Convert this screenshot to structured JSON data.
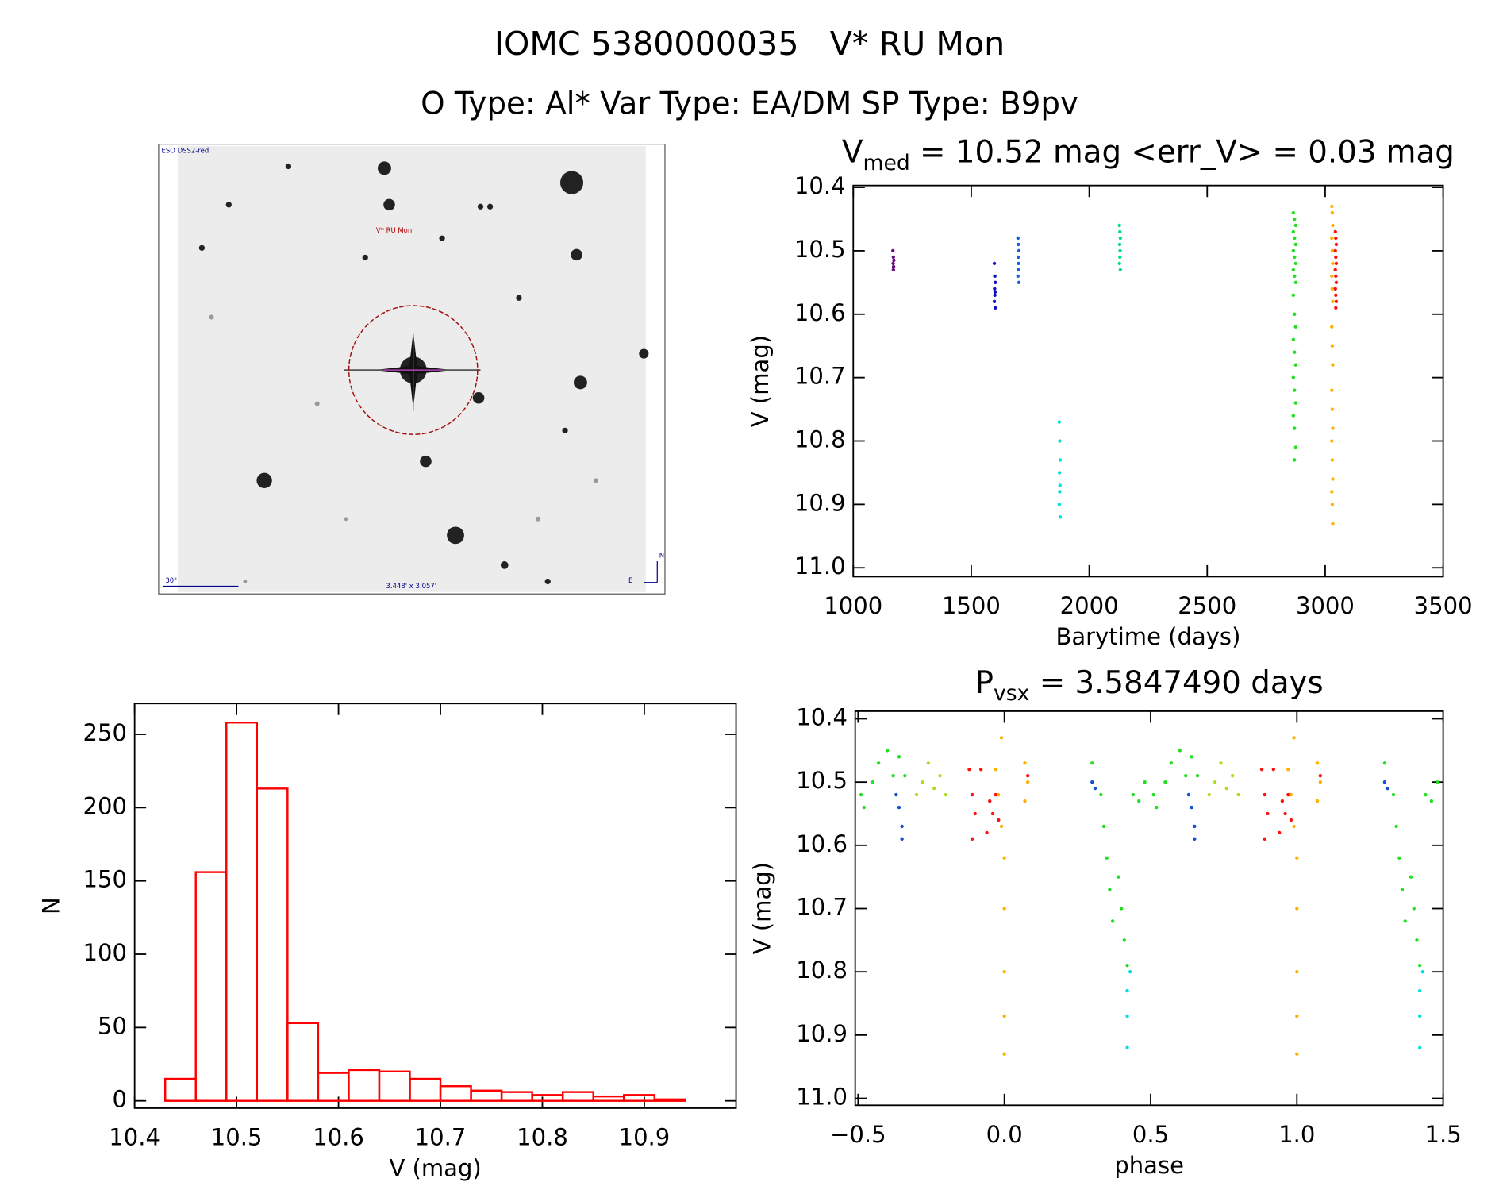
{
  "header": {
    "title": "IOMC 5380000035   V* RU Mon",
    "subtitle": "O Type: Al*  Var Type: EA/DM  SP Type: B9pv"
  },
  "image": {
    "survey": "ESO DSS2-red",
    "target": "V* RU Mon",
    "scale": "30\"",
    "size": "3.448' x 3.057'",
    "north": "N",
    "east": "E"
  },
  "chart_data": [
    {
      "type": "scatter",
      "title_parts": [
        "V",
        "med",
        " = 10.52 mag <err_V> = 0.03 mag"
      ],
      "x_label": "Barytime (days)",
      "y_label": "V (mag)",
      "xlim": [
        1000,
        3500
      ],
      "xticks": [
        1000,
        1500,
        2000,
        2500,
        3000,
        3500
      ],
      "ylim": [
        10.397,
        11.014
      ],
      "y_inverted": true,
      "yticks": [
        10.4,
        10.5,
        10.6,
        10.7,
        10.8,
        10.9,
        {
          "value": 11,
          "label": "11.0"
        }
      ],
      "series": [
        {
          "color": "#6a0d83",
          "x": [
            1168,
            1170,
            1172,
            1169,
            1171,
            1170
          ],
          "values": [
            10.5,
            10.51,
            10.515,
            10.52,
            10.525,
            10.53
          ]
        },
        {
          "color": "#1010c0",
          "x": [
            1598,
            1600,
            1602,
            1599,
            1601,
            1600,
            1598,
            1602
          ],
          "values": [
            10.52,
            10.54,
            10.55,
            10.56,
            10.565,
            10.57,
            10.58,
            10.59
          ]
        },
        {
          "color": "#1060e0",
          "x": [
            1698,
            1700,
            1702,
            1699,
            1701,
            1700,
            1698,
            1702
          ],
          "values": [
            10.48,
            10.49,
            10.5,
            10.51,
            10.52,
            10.53,
            10.54,
            10.55
          ]
        },
        {
          "color": "#00e0e0",
          "x": [
            1873,
            1875,
            1877,
            1874,
            1876,
            1875,
            1873,
            1877
          ],
          "values": [
            10.77,
            10.8,
            10.83,
            10.85,
            10.87,
            10.88,
            10.9,
            10.92
          ]
        },
        {
          "color": "#00e080",
          "x": [
            2128,
            2130,
            2132,
            2129,
            2131,
            2130,
            2128,
            2132
          ],
          "values": [
            10.46,
            10.47,
            10.48,
            10.49,
            10.5,
            10.51,
            10.52,
            10.53
          ]
        },
        {
          "color": "#20e020",
          "x": [
            2865,
            2870,
            2875,
            2865,
            2870,
            2875,
            2865,
            2870,
            2875,
            2865,
            2870,
            2875,
            2865,
            2870,
            2875,
            2865,
            2870,
            2875,
            2865,
            2870,
            2875,
            2865,
            2870,
            2875,
            2870
          ],
          "values": [
            10.44,
            10.45,
            10.46,
            10.47,
            10.48,
            10.49,
            10.5,
            10.51,
            10.52,
            10.53,
            10.54,
            10.55,
            10.57,
            10.6,
            10.62,
            10.64,
            10.66,
            10.68,
            10.7,
            10.72,
            10.74,
            10.76,
            10.78,
            10.81,
            10.83
          ]
        },
        {
          "color": "#ffb000",
          "x": [
            3028,
            3030,
            3032,
            3028,
            3030,
            3032,
            3028,
            3030,
            3032,
            3028,
            3030,
            3032,
            3028,
            3030,
            3032,
            3028,
            3030,
            3032,
            3028,
            3030,
            3032
          ],
          "values": [
            10.43,
            10.44,
            10.46,
            10.48,
            10.5,
            10.52,
            10.54,
            10.56,
            10.58,
            10.62,
            10.65,
            10.68,
            10.72,
            10.75,
            10.78,
            10.8,
            10.83,
            10.86,
            10.88,
            10.9,
            10.93
          ]
        },
        {
          "color": "#ff1010",
          "x": [
            3043,
            3045,
            3047,
            3043,
            3045,
            3047,
            3043,
            3045,
            3047,
            3043,
            3045,
            3047,
            3045
          ],
          "values": [
            10.47,
            10.48,
            10.49,
            10.5,
            10.51,
            10.52,
            10.53,
            10.54,
            10.55,
            10.56,
            10.57,
            10.58,
            10.59
          ]
        }
      ]
    },
    {
      "type": "histogram",
      "x_label": "V (mag)",
      "y_label": "N",
      "color": "#ff0000",
      "bins": [
        10.43,
        10.46,
        10.49,
        10.52,
        10.55,
        10.58,
        10.61,
        10.64,
        10.67,
        10.7,
        10.73,
        10.76,
        10.79,
        10.82,
        10.85,
        10.88,
        10.91,
        10.94
      ],
      "counts": [
        15,
        156,
        258,
        213,
        53,
        19,
        21,
        20,
        15,
        10,
        7,
        6,
        4,
        6,
        3,
        4,
        1
      ],
      "xlim": [
        10.4,
        10.99
      ],
      "xticks": [
        10.4,
        10.5,
        10.6,
        10.7,
        10.8,
        10.9
      ],
      "ylim": [
        -5,
        271
      ],
      "yticks": [
        0,
        50,
        100,
        150,
        200,
        250
      ]
    },
    {
      "type": "scatter",
      "title_parts": [
        "P",
        "vsx",
        " = 3.5847490 days"
      ],
      "x_label": "phase",
      "y_label": "V (mag)",
      "xlim": [
        -0.51,
        1.5
      ],
      "xticks": [
        {
          "value": -0.5,
          "label": "−0.5"
        },
        {
          "value": 0,
          "label": "0.0"
        },
        0.5,
        {
          "value": 1,
          "label": "1.0"
        },
        1.5
      ],
      "ylim": [
        10.388,
        11.011
      ],
      "y_inverted": true,
      "yticks": [
        10.4,
        10.5,
        10.6,
        10.7,
        10.8,
        10.9,
        {
          "value": 11,
          "label": "11.0"
        }
      ],
      "series": [
        {
          "color": "#20e020",
          "x": [
            -0.49,
            -0.48,
            -0.45,
            -0.43,
            -0.4,
            -0.38,
            -0.36,
            -0.34,
            0.3,
            0.33,
            0.34,
            0.35,
            0.36,
            0.37,
            0.39,
            0.4,
            0.41,
            0.42,
            0.44,
            0.46,
            0.48,
            0.51,
            0.52,
            0.55,
            0.57,
            0.6,
            0.62,
            0.64,
            0.66,
            1.3,
            1.33,
            1.34,
            1.35,
            1.36,
            1.37,
            1.39,
            1.4,
            1.41,
            1.42,
            1.44,
            1.46,
            1.48
          ],
          "values": [
            10.52,
            10.54,
            10.5,
            10.47,
            10.45,
            10.49,
            10.46,
            10.49,
            10.47,
            10.52,
            10.57,
            10.62,
            10.67,
            10.72,
            10.65,
            10.7,
            10.75,
            10.79,
            10.52,
            10.53,
            10.5,
            10.52,
            10.54,
            10.5,
            10.47,
            10.45,
            10.49,
            10.46,
            10.49,
            10.47,
            10.52,
            10.57,
            10.62,
            10.67,
            10.72,
            10.65,
            10.7,
            10.75,
            10.79,
            10.52,
            10.53,
            10.5
          ]
        },
        {
          "color": "#a8e020",
          "x": [
            -0.3,
            -0.28,
            -0.26,
            -0.24,
            -0.22,
            -0.2,
            0.7,
            0.72,
            0.74,
            0.76,
            0.78,
            0.8
          ],
          "values": [
            10.52,
            10.5,
            10.47,
            10.51,
            10.49,
            10.52,
            10.52,
            10.5,
            10.47,
            10.51,
            10.49,
            10.52
          ]
        },
        {
          "color": "#ff1010",
          "x": [
            -0.12,
            -0.11,
            -0.1,
            -0.11,
            -0.08,
            -0.06,
            -0.05,
            -0.04,
            -0.03,
            -0.02,
            0.08,
            0.88,
            0.89,
            0.9,
            0.89,
            0.92,
            0.94,
            0.95,
            0.96,
            0.97,
            0.98,
            1.08
          ],
          "values": [
            10.48,
            10.52,
            10.55,
            10.59,
            10.48,
            10.58,
            10.53,
            10.55,
            10.52,
            10.56,
            10.49,
            10.48,
            10.52,
            10.55,
            10.59,
            10.48,
            10.58,
            10.53,
            10.55,
            10.52,
            10.56,
            10.49
          ]
        },
        {
          "color": "#ffb000",
          "x": [
            -0.03,
            -0.02,
            -0.01,
            0.0,
            0.0,
            0.0,
            0.0,
            0.0,
            -0.01,
            0.07,
            0.08,
            0.07,
            0.97,
            0.98,
            0.99,
            1.0,
            1.0,
            1.0,
            1.0,
            1.0,
            0.99,
            1.07,
            1.08,
            1.07
          ],
          "values": [
            10.48,
            10.52,
            10.57,
            10.62,
            10.7,
            10.8,
            10.87,
            10.93,
            10.43,
            10.47,
            10.5,
            10.53,
            10.48,
            10.52,
            10.57,
            10.62,
            10.7,
            10.8,
            10.87,
            10.93,
            10.43,
            10.47,
            10.5,
            10.53
          ]
        },
        {
          "color": "#1050d0",
          "x": [
            -0.37,
            -0.36,
            -0.35,
            -0.35,
            0.3,
            0.31,
            0.63,
            0.64,
            0.65,
            0.65,
            1.3,
            1.31
          ],
          "values": [
            10.52,
            10.54,
            10.57,
            10.59,
            10.5,
            10.51,
            10.52,
            10.54,
            10.57,
            10.59,
            10.5,
            10.51
          ]
        },
        {
          "color": "#00e0e0",
          "x": [
            0.42,
            0.42,
            0.42,
            0.43,
            1.42,
            1.42,
            1.42,
            1.43
          ],
          "values": [
            10.83,
            10.87,
            10.92,
            10.8,
            10.83,
            10.87,
            10.92,
            10.8
          ]
        }
      ]
    }
  ]
}
